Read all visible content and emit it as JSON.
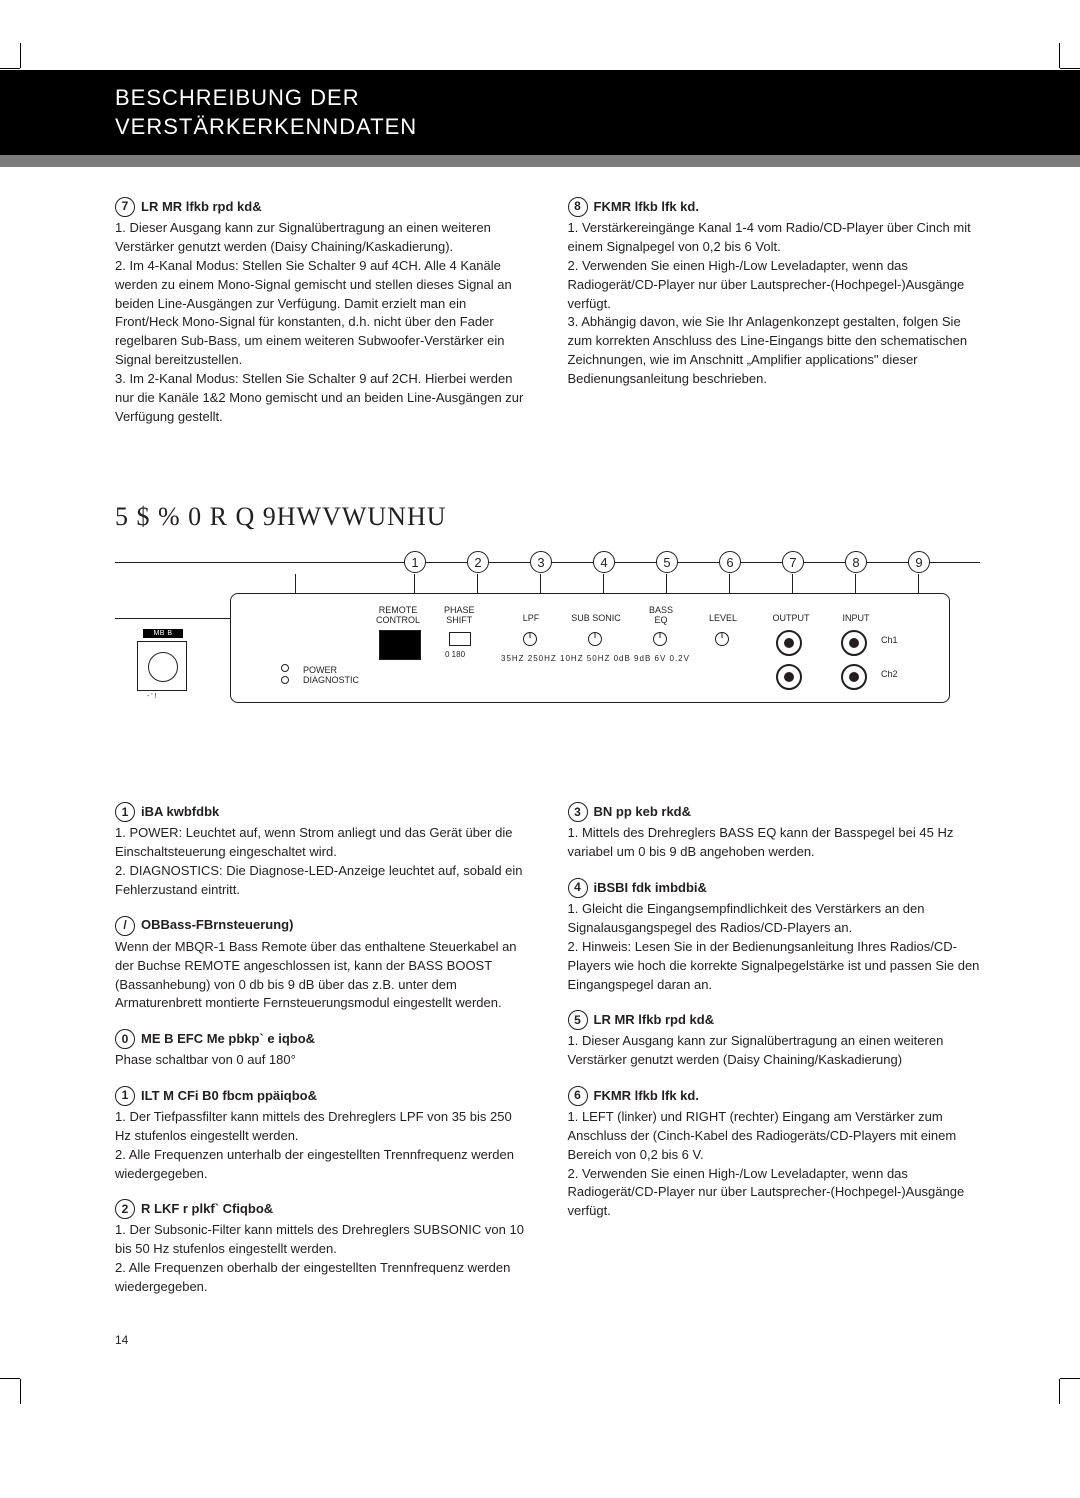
{
  "header": {
    "line1": "BESCHREIBUNG DER",
    "line2": "VERSTÄRKERKENNDATEN"
  },
  "top_left": {
    "num": "7",
    "title": "LR MR   lfkb   rpd kd&",
    "body": "1. Dieser Ausgang kann zur Signalübertragung an einen weiteren Verstärker genutzt werden (Daisy Chaining/Kaskadierung).\n2. Im 4-Kanal Modus: Stellen Sie Schalter 9 auf 4CH. Alle 4 Kanäle werden zu einem Mono-Signal gemischt und stellen dieses Signal an beiden Line-Ausgängen zur Verfügung. Damit erzielt man ein Front/Heck Mono-Signal für konstanten, d.h. nicht über den Fader regelbaren Sub-Bass, um einem weiteren Subwoofer-Verstärker ein Signal bereitzustellen.\n3. Im 2-Kanal Modus: Stellen Sie Schalter 9 auf 2CH. Hierbei werden nur die Kanäle 1&2 Mono gemischt und an beiden Line-Ausgängen zur Verfügung gestellt."
  },
  "top_right": {
    "num": "8",
    "title": "FKMR   lfkb   lfk kd.",
    "body": "1. Verstärkereingänge Kanal 1-4 vom Radio/CD-Player über Cinch mit einem Signalpegel von 0,2 bis 6 Volt.\n2. Verwenden Sie einen High-/Low Leveladapter, wenn das Radiogerät/CD-Player nur über Lautsprecher-(Hochpegel-)Ausgänge verfügt.\n3. Abhängig davon, wie Sie Ihr Anlagenkonzept gestalten, folgen Sie zum korrekten Anschluss des Line-Eingangs bitte den schematischen Zeichnungen, wie im Anschnitt „Amplifier applications\" dieser Bedienungsanleitung beschrieben."
  },
  "product_title": "5 $ %     0 R Q 9HWVWUNHU",
  "diagram": {
    "numbers": [
      "1",
      "2",
      "3",
      "4",
      "5",
      "6",
      "7",
      "8",
      "9"
    ],
    "labels": {
      "remote": "REMOTE\nCONTROL",
      "phase": "PHASE\nSHIFT",
      "lpf": "LPF",
      "subsonic": "SUB SONIC",
      "basseq": "BASS\nEQ",
      "level": "LEVEL",
      "output": "OUTPUT",
      "input": "INPUT",
      "power": "POWER\nDIAGNOSTIC",
      "ch1": "Ch1",
      "ch2": "Ch2",
      "phase_range": "0    180",
      "range": "35HZ  250HZ  10HZ  50HZ  0dB  9dB 6V   0.2V"
    },
    "gain": {
      "label": "MB   B",
      "sub": "- '  !"
    }
  },
  "bottom_left": [
    {
      "num": "1",
      "title": "iBA     kwbfdbk",
      "body": "1. POWER: Leuchtet auf, wenn Strom anliegt und das Gerät über die Einschaltsteuerung eingeschaltet wird.\n2. DIAGNOSTICS: Die Diagnose-LED-Anzeige leuchtet auf, sobald ein Fehlerzustand eintritt."
    },
    {
      "num": " / ",
      "title": "    OBBass-FBrnsteuerung)",
      "body": "Wenn der MBQR-1 Bass Remote über das enthaltene Steuerkabel an der Buchse REMOTE angeschlossen ist, kann der BASS BOOST (Bassanhebung) von 0 db bis 9 dB über das z.B. unter dem Armaturenbrett montierte Fernsteuerungsmodul eingestellt werden."
    },
    {
      "num": "0",
      "title": "ME    B   EFC    Me  pbkp` e  iqbo&",
      "body": "Phase schaltbar von 0 auf 180°"
    },
    {
      "num": "1",
      "title": " ILT  M      CFi  B0     fbcm  ppäiqbo&",
      "body": "1. Der Tiefpassfilter kann mittels des Drehreglers LPF von 35 bis 250 Hz stufenlos eingestellt werden.\n2. Alle Frequenzen unterhalb der eingestellten Trennfrequenz werden wiedergegeben."
    },
    {
      "num": "2",
      "title": " R    LKF     r  plkf`   Cfiqbo&",
      "body": "1. Der Subsonic-Filter kann mittels des Drehreglers SUBSONIC von 10 bis 50 Hz stufenlos eingestellt werden.\n2. Alle Frequenzen oberhalb der eingestellten Trennfrequenz werden wiedergegeben."
    }
  ],
  "bottom_right": [
    {
      "num": "3",
      "title": "        BN        pp    keb  rkd&",
      "body": "1. Mittels des Drehreglers BASS EQ kann der Basspegel bei 45 Hz variabel um 0 bis 9 dB angehoben werden."
    },
    {
      "num": "4",
      "title": "iBSBI     fdk   imbdbi&",
      "body": "1. Gleicht die Eingangsempfindlichkeit des Verstärkers an den Signalausgangspegel des Radios/CD-Players an.\n2. Hinweis: Lesen Sie in der Bedienungsanleitung Ihres Radios/CD-Players wie hoch die korrekte Signalpegelstärke ist und passen Sie den Eingangspegel daran an."
    },
    {
      "num": "5",
      "title": "LR  MR     lfkb    rpd  kd&",
      "body": "1. Dieser Ausgang kann zur Signalübertragung an einen weiteren Verstärker genutzt werden (Daisy Chaining/Kaskadierung)"
    },
    {
      "num": "6",
      "title": "FKMR   lfkb   lfk kd.",
      "body": "1. LEFT (linker) und RIGHT (rechter) Eingang am Verstärker zum Anschluss der (Cinch-Kabel des Radiogeräts/CD-Players mit einem Bereich von 0,2 bis 6 V.\n2. Verwenden Sie einen High-/Low Leveladapter, wenn das Radiogerät/CD-Player nur über Lautsprecher-(Hochpegel-)Ausgänge verfügt."
    }
  ],
  "page_number": "14"
}
